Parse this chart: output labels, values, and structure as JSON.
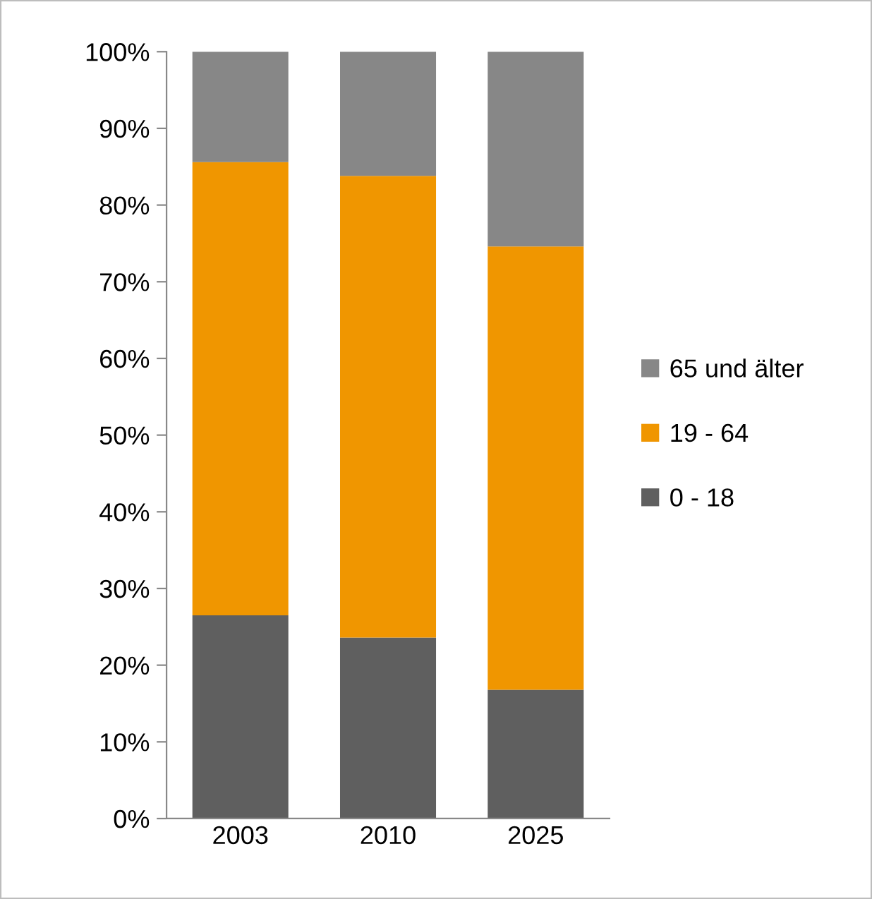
{
  "chart_data": {
    "type": "bar",
    "stacked": true,
    "categories": [
      "2003",
      "2010",
      "2025"
    ],
    "series": [
      {
        "name": "0 - 18",
        "color": "#5f5f5f",
        "values": [
          26.5,
          23.6,
          16.8
        ]
      },
      {
        "name": "19 - 64",
        "color": "#f09600",
        "values": [
          59.1,
          60.2,
          57.8
        ]
      },
      {
        "name": "65 und älter",
        "color": "#878787",
        "values": [
          14.4,
          16.2,
          25.4
        ]
      }
    ],
    "ylim": [
      0,
      100
    ],
    "yticks": [
      {
        "value": 0,
        "label": "0%"
      },
      {
        "value": 10,
        "label": "10%"
      },
      {
        "value": 20,
        "label": "20%"
      },
      {
        "value": 30,
        "label": "30%"
      },
      {
        "value": 40,
        "label": "40%"
      },
      {
        "value": 50,
        "label": "50%"
      },
      {
        "value": 60,
        "label": "60%"
      },
      {
        "value": 70,
        "label": "70%"
      },
      {
        "value": 80,
        "label": "80%"
      },
      {
        "value": 90,
        "label": "90%"
      },
      {
        "value": 100,
        "label": "100%"
      }
    ],
    "grid": false,
    "legend": "right"
  }
}
